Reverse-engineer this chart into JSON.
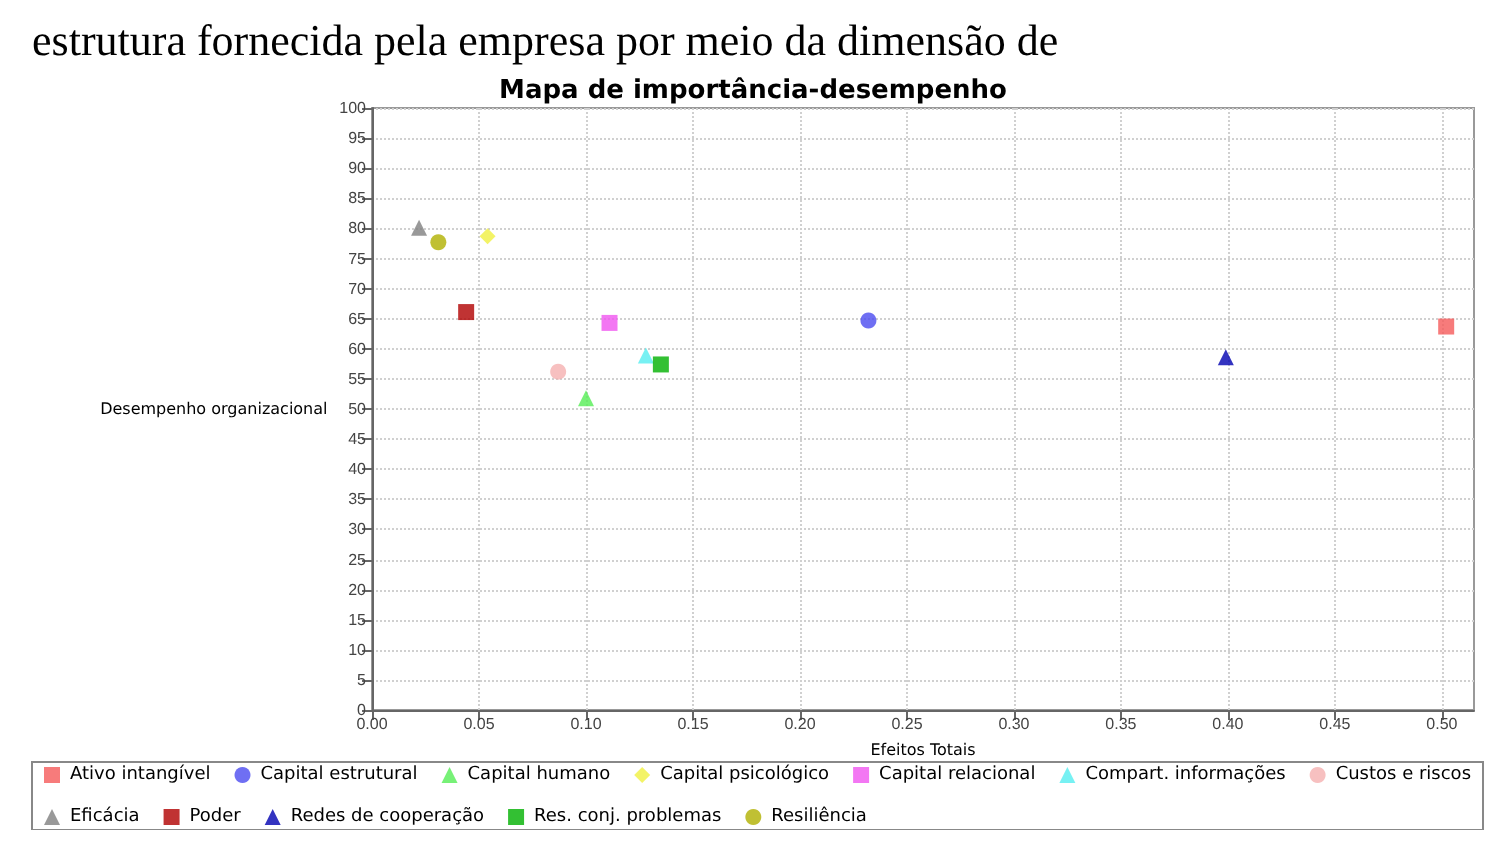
{
  "chart_data": {
    "type": "scatter",
    "title": "Mapa de importância-desempenho",
    "xlabel": "Efeitos Totais",
    "ylabel": "Desempenho organizacional",
    "annotations": [
      "estrutura fornecida pela empresa por meio da dimensão de"
    ],
    "xlim": [
      0,
      0.515
    ],
    "xticks": [
      {
        "value": 0,
        "label": "0.00"
      },
      0.05,
      {
        "value": 0.1,
        "label": "0.10"
      },
      0.15,
      {
        "value": 0.2,
        "label": "0.20"
      },
      0.25,
      {
        "value": 0.3,
        "label": "0.30"
      },
      0.35,
      {
        "value": 0.4,
        "label": "0.40"
      },
      0.45,
      {
        "value": 0.5,
        "label": "0.50"
      }
    ],
    "ylim": [
      0,
      100
    ],
    "yticks": [
      0,
      5,
      10,
      15,
      20,
      25,
      30,
      35,
      40,
      45,
      50,
      55,
      60,
      65,
      70,
      75,
      80,
      85,
      90,
      95,
      100
    ],
    "grid": true,
    "legend": "bottom",
    "series": [
      {
        "name": "Ativo intangível",
        "color": "#f55a5a",
        "marker": "square",
        "x": [
          0.502
        ],
        "values": [
          63.7
        ]
      },
      {
        "name": "Capital estrutural",
        "color": "#4b4bf0",
        "marker": "circle",
        "x": [
          0.232
        ],
        "values": [
          64.7
        ]
      },
      {
        "name": "Capital humano",
        "color": "#55ee55",
        "marker": "triangle",
        "x": [
          0.1
        ],
        "values": [
          51.8
        ]
      },
      {
        "name": "Capital psicológico",
        "color": "#f0f040",
        "marker": "diamond",
        "x": [
          0.054
        ],
        "values": [
          78.7
        ]
      },
      {
        "name": "Capital relacional",
        "color": "#f055f0",
        "marker": "square",
        "x": [
          0.111
        ],
        "values": [
          64.3
        ]
      },
      {
        "name": "Compart. informações",
        "color": "#55eef0",
        "marker": "triangle",
        "x": [
          0.128
        ],
        "values": [
          58.9
        ]
      },
      {
        "name": "Custos e riscos",
        "color": "#f5b0b0",
        "marker": "circle",
        "x": [
          0.087
        ],
        "values": [
          56.2
        ]
      },
      {
        "name": "Eficácia",
        "color": "#808080",
        "marker": "triangle",
        "x": [
          0.022
        ],
        "values": [
          80.1
        ]
      },
      {
        "name": "Poder",
        "color": "#b00000",
        "marker": "square",
        "x": [
          0.044
        ],
        "values": [
          66.1
        ]
      },
      {
        "name": "Redes de cooperação",
        "color": "#0000b0",
        "marker": "triangle",
        "x": [
          0.399
        ],
        "values": [
          58.6
        ]
      },
      {
        "name": "Res. conj. problemas",
        "color": "#00b000",
        "marker": "square",
        "x": [
          0.135
        ],
        "values": [
          57.4
        ]
      },
      {
        "name": "Resiliência",
        "color": "#b0b000",
        "marker": "circle",
        "x": [
          0.031
        ],
        "values": [
          77.7
        ]
      }
    ]
  }
}
